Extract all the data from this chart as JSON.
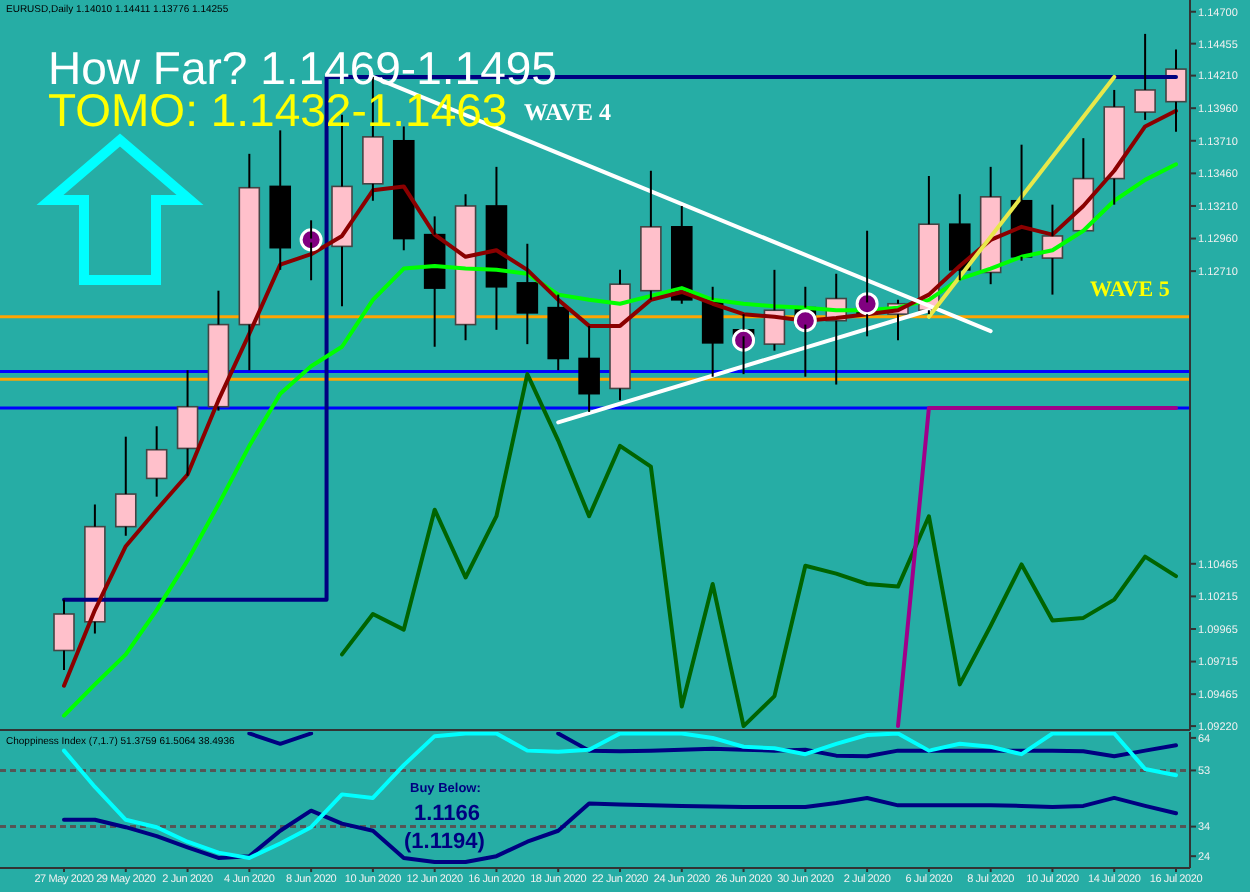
{
  "chart_data": [
    {
      "type": "candlestick",
      "annotations": [
        "EURUSD,Daily  1.14010 1.14411 1.13776 1.14255",
        "How Far? 1.1469-1.1495",
        "TOMO: 1.1432-1.1463",
        "WAVE 4",
        "WAVE 5"
      ],
      "categories": [
        "27 May 2020",
        null,
        "29 May 2020",
        null,
        "2 Jun 2020",
        null,
        "4 Jun 2020",
        null,
        "8 Jun 2020",
        null,
        "10 Jun 2020",
        null,
        "12 Jun 2020",
        null,
        "16 Jun 2020",
        null,
        "18 Jun 2020",
        null,
        "22 Jun 2020",
        null,
        "24 Jun 2020",
        null,
        "26 Jun 2020",
        null,
        "30 Jun 2020",
        null,
        "2 Jul 2020",
        null,
        "6 Jul 2020",
        null,
        "8 Jul 2020",
        null,
        "10 Jul 2020",
        null,
        "14 Jul 2020",
        null,
        "16 Jul 2020"
      ],
      "ohlc": [
        [
          1.098,
          1.1019,
          1.0965,
          1.1008
        ],
        [
          1.1002,
          1.1092,
          1.0993,
          1.1075
        ],
        [
          1.1075,
          1.1144,
          1.1068,
          1.11
        ],
        [
          1.1112,
          1.1152,
          1.1098,
          1.1134
        ],
        [
          1.1135,
          1.1195,
          1.1114,
          1.1167
        ],
        [
          1.1167,
          1.1256,
          1.1164,
          1.123
        ],
        [
          1.123,
          1.1361,
          1.1195,
          1.1335
        ],
        [
          1.1336,
          1.1379,
          1.1272,
          1.1289
        ],
        [
          1.1293,
          1.131,
          1.1264,
          1.1296
        ],
        [
          1.129,
          1.1391,
          1.1244,
          1.1336
        ],
        [
          1.1338,
          1.142,
          1.1325,
          1.1374
        ],
        [
          1.1371,
          1.1382,
          1.1287,
          1.1296
        ],
        [
          1.1299,
          1.1313,
          1.1213,
          1.1258
        ],
        [
          1.123,
          1.133,
          1.1218,
          1.1321
        ],
        [
          1.1321,
          1.1351,
          1.1226,
          1.1259
        ],
        [
          1.1262,
          1.1292,
          1.1215,
          1.1239
        ],
        [
          1.1243,
          1.1253,
          1.1195,
          1.1204
        ],
        [
          1.1204,
          1.1229,
          1.1163,
          1.1177
        ],
        [
          1.1181,
          1.1272,
          1.1172,
          1.1261
        ],
        [
          1.1256,
          1.1348,
          1.1249,
          1.1305
        ],
        [
          1.1305,
          1.1321,
          1.1246,
          1.1249
        ],
        [
          1.1249,
          1.1259,
          1.119,
          1.1216
        ],
        [
          1.1226,
          1.1238,
          1.1192,
          1.1221
        ],
        [
          1.1215,
          1.1272,
          1.121,
          1.1241
        ],
        [
          1.1243,
          1.1259,
          1.119,
          1.123
        ],
        [
          1.1233,
          1.1269,
          1.1184,
          1.125
        ],
        [
          1.1247,
          1.1302,
          1.1221,
          1.1238
        ],
        [
          1.1238,
          1.1249,
          1.1218,
          1.1246
        ],
        [
          1.1241,
          1.1344,
          1.1238,
          1.1307
        ],
        [
          1.1307,
          1.133,
          1.1264,
          1.1272
        ],
        [
          1.127,
          1.1351,
          1.1261,
          1.1328
        ],
        [
          1.1325,
          1.1368,
          1.1279,
          1.1282
        ],
        [
          1.1281,
          1.1322,
          1.1253,
          1.1298
        ],
        [
          1.1302,
          1.1373,
          1.1302,
          1.1342
        ],
        [
          1.1342,
          1.141,
          1.1322,
          1.1397
        ],
        [
          1.1393,
          1.1453,
          1.1387,
          1.141
        ],
        [
          1.1401,
          1.1441,
          1.1378,
          1.1426
        ]
      ],
      "series": [
        {
          "type": "line",
          "color": "#006400",
          "values": [
            null,
            null,
            null,
            null,
            null,
            null,
            null,
            null,
            null,
            1.0977,
            1.1008,
            1.0996,
            1.1088,
            1.1036,
            1.1083,
            1.1192,
            1.1141,
            1.1083,
            1.1137,
            1.1121,
            1.0937,
            1.1031,
            1.0922,
            1.0945,
            1.1045,
            1.1039,
            1.1031,
            1.1029,
            1.1083,
            1.0954,
            1.0999,
            1.1046,
            1.1003,
            1.1005,
            1.1019,
            1.1052,
            1.1037
          ]
        },
        {
          "type": "step",
          "color": "#000080",
          "values": [
            1.1019,
            1.1019,
            1.1019,
            1.1019,
            1.1019,
            1.1019,
            1.1019,
            1.1019,
            1.1019,
            1.142,
            1.142,
            1.142,
            1.142,
            1.142,
            1.142,
            1.142,
            1.142,
            1.142,
            1.142,
            1.142,
            1.142,
            1.142,
            1.142,
            1.142,
            1.142,
            1.142,
            1.142,
            1.142,
            1.142,
            1.142,
            1.142,
            1.142,
            1.142,
            1.142,
            1.142,
            1.142,
            1.142
          ]
        },
        {
          "type": "line",
          "color": "#a0008a",
          "values": [
            null,
            null,
            null,
            null,
            null,
            null,
            null,
            null,
            null,
            null,
            null,
            null,
            null,
            null,
            null,
            null,
            null,
            null,
            null,
            null,
            null,
            null,
            null,
            null,
            null,
            null,
            null,
            1.0922,
            1.1166,
            1.1166,
            1.1166,
            1.1166,
            1.1166,
            1.1166,
            1.1166,
            1.1166,
            1.1166
          ]
        },
        {
          "type": "line",
          "color": "#00ff00",
          "values": [
            1.093,
            1.0954,
            1.0977,
            1.1011,
            1.1049,
            1.1092,
            1.1137,
            1.1177,
            1.1198,
            1.1213,
            1.1249,
            1.1273,
            1.1275,
            1.1273,
            1.1272,
            1.1269,
            1.1253,
            1.1249,
            1.1246,
            1.1252,
            1.1258,
            1.1249,
            1.1246,
            1.1244,
            1.1243,
            1.1241,
            1.1241,
            1.1243,
            1.1249,
            1.1265,
            1.1273,
            1.1282,
            1.1287,
            1.1302,
            1.1325,
            1.1341,
            1.1353
          ]
        },
        {
          "type": "line",
          "color": "#8b0000",
          "values": [
            1.0953,
            1.1011,
            1.106,
            1.1088,
            1.1115,
            1.1172,
            1.1223,
            1.1276,
            1.1284,
            1.1298,
            1.1333,
            1.1336,
            1.1299,
            1.1282,
            1.1287,
            1.1272,
            1.1249,
            1.1229,
            1.1229,
            1.1249,
            1.1255,
            1.1246,
            1.1238,
            1.1236,
            1.1233,
            1.1235,
            1.1238,
            1.1241,
            1.1253,
            1.1275,
            1.1295,
            1.1305,
            1.1299,
            1.1321,
            1.1348,
            1.1382,
            1.1394
          ]
        },
        {
          "type": "line",
          "color": "#ffffff",
          "x": [
            "10 Jun 2020",
            "8 Jul 2020"
          ],
          "values": [
            1.142,
            1.1225
          ]
        },
        {
          "type": "line",
          "color": "#ffffff",
          "x": [
            "18 Jun 2020",
            "6 Jul 2020"
          ],
          "values": [
            1.1155,
            1.1241
          ]
        },
        {
          "type": "line",
          "color": "#e8e84a",
          "x": [
            "6 Jul 2020",
            "14 Jul 2020"
          ],
          "values": [
            1.1236,
            1.142
          ]
        },
        {
          "type": "scatter",
          "color": "#800080",
          "marker": "circle",
          "x": [
            "8 Jun 2020",
            "26 Jun 2020",
            "30 Jun 2020",
            "2 Jul 2020"
          ],
          "values": [
            1.1295,
            1.1218,
            1.1233,
            1.1246
          ]
        }
      ],
      "ref_lines": [
        {
          "axis": "y",
          "value": 1.1236,
          "color": "#ffa500"
        },
        {
          "axis": "y",
          "value": 1.1194,
          "color": "#0000ff"
        },
        {
          "axis": "y",
          "value": 1.1188,
          "color": "#ffa500"
        },
        {
          "axis": "y",
          "value": 1.1166,
          "color": "#0000ff"
        }
      ],
      "ylim": [
        1.0919,
        1.1479
      ],
      "yticks": [
        {
          "value": 1.147,
          "label": "1.14700"
        },
        {
          "value": 1.14455,
          "label": "1.14455"
        },
        {
          "value": 1.1421,
          "label": "1.14210"
        },
        {
          "value": 1.1396,
          "label": "1.13960"
        },
        {
          "value": 1.1371,
          "label": "1.13710"
        },
        {
          "value": 1.1346,
          "label": "1.13460"
        },
        {
          "value": 1.1321,
          "label": "1.13210"
        },
        {
          "value": 1.1296,
          "label": "1.12960"
        },
        {
          "value": 1.1271,
          "label": "1.12710"
        },
        {
          "value": 1.10465,
          "label": "1.10465"
        },
        {
          "value": 1.10215,
          "label": "1.10215"
        },
        {
          "value": 1.09965,
          "label": "1.09965"
        },
        {
          "value": 1.09715,
          "label": "1.09715"
        },
        {
          "value": 1.09465,
          "label": "1.09465"
        },
        {
          "value": 1.0922,
          "label": "1.09220"
        }
      ],
      "tick_labels": "y"
    },
    {
      "type": "line",
      "title": "Choppiness Index (7,1.7) 51.3759 61.5064 38.4936",
      "annotations": [
        "Buy Below:",
        "1.1166",
        "(1.1194)"
      ],
      "categories": [
        "27 May 2020",
        null,
        "29 May 2020",
        null,
        "2 Jun 2020",
        null,
        "4 Jun 2020",
        null,
        "8 Jun 2020",
        null,
        "10 Jun 2020",
        null,
        "12 Jun 2020",
        null,
        "16 Jun 2020",
        null,
        "18 Jun 2020",
        null,
        "22 Jun 2020",
        null,
        "24 Jun 2020",
        null,
        "26 Jun 2020",
        null,
        "30 Jun 2020",
        null,
        "2 Jul 2020",
        null,
        "6 Jul 2020",
        null,
        "8 Jul 2020",
        null,
        "10 Jul 2020",
        null,
        "14 Jul 2020",
        null,
        "16 Jul 2020"
      ],
      "series": [
        {
          "color": "#000080",
          "values": [
            null,
            null,
            null,
            null,
            null,
            null,
            65.5,
            62,
            65.5,
            null,
            null,
            null,
            null,
            null,
            null,
            null,
            65.5,
            59.7,
            59.5,
            59.7,
            60,
            60.3,
            60,
            59.7,
            60,
            58,
            57.8,
            59.7,
            59.7,
            59.7,
            59.7,
            59.7,
            59.7,
            59.5,
            57.8,
            59.7,
            61.5
          ]
        },
        {
          "color": "#000080",
          "values": [
            36.3,
            36.3,
            33.8,
            30.8,
            27,
            23.4,
            24,
            32.6,
            39.4,
            35,
            32.6,
            23.4,
            22,
            22,
            24,
            28.9,
            32.6,
            41.8,
            41.5,
            41.2,
            41,
            40.8,
            40.6,
            40.6,
            40.6,
            42,
            43.7,
            41.2,
            41.2,
            41.2,
            41.2,
            41,
            40.6,
            41,
            43.7,
            41,
            38.5
          ]
        },
        {
          "color": "#00ffff",
          "values": [
            59.7,
            47.4,
            36.3,
            33.8,
            28.9,
            25.2,
            23.4,
            28.3,
            33.8,
            44.9,
            43.7,
            54.8,
            64.6,
            65.5,
            65.5,
            59.7,
            59.3,
            60,
            65.5,
            65.5,
            65.5,
            64,
            61,
            60.5,
            58.5,
            62,
            65,
            65.5,
            59.7,
            62,
            61,
            58.5,
            65.5,
            65.5,
            65.5,
            53.5,
            51.4
          ]
        }
      ],
      "ref_lines": [
        {
          "axis": "y",
          "value": 53,
          "color": "#555555",
          "line_style": "dashed"
        },
        {
          "axis": "y",
          "value": 34,
          "color": "#555555",
          "line_style": "dashed"
        }
      ],
      "ylim": [
        20,
        66
      ],
      "yticks": [
        24,
        34,
        53,
        64
      ]
    }
  ]
}
